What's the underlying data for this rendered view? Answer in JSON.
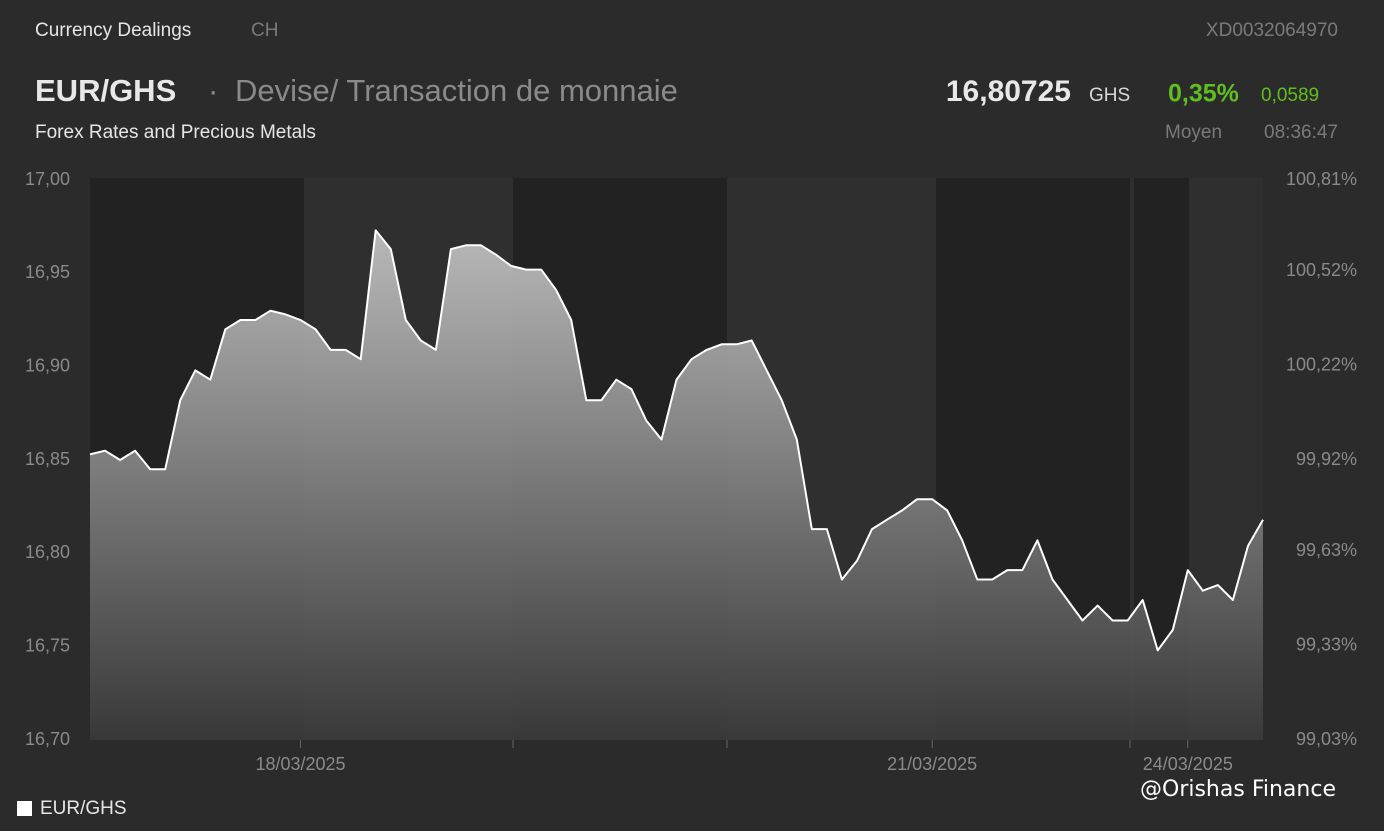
{
  "header": {
    "section": "Currency Dealings",
    "market": "CH",
    "isin": "XD0032064970",
    "pair": "EUR/GHS",
    "separator": "·",
    "description": "Devise/ Transaction de monnaie",
    "price": "16,80725",
    "currency": "GHS",
    "change_pct": "0,35%",
    "change_abs": "0,0589",
    "category": "Forex Rates and Precious Metals",
    "price_type": "Moyen",
    "time": "08:36:47"
  },
  "watermark": "@Orishas Finance",
  "chart_data": {
    "type": "area",
    "categories": [
      null,
      null,
      null,
      null,
      null,
      null,
      null,
      null,
      null,
      null,
      null,
      null,
      null,
      null,
      "18/03/2025",
      null,
      null,
      null,
      null,
      null,
      null,
      null,
      null,
      null,
      null,
      null,
      null,
      null,
      null,
      null,
      null,
      null,
      null,
      null,
      null,
      null,
      null,
      null,
      null,
      null,
      null,
      null,
      null,
      null,
      null,
      null,
      null,
      null,
      null,
      null,
      null,
      null,
      null,
      null,
      null,
      null,
      "21/03/2025",
      null,
      null,
      null,
      null,
      null,
      null,
      null,
      null,
      null,
      null,
      null,
      null,
      null,
      null,
      null,
      null,
      "24/03/2025",
      null,
      null,
      null,
      null,
      null
    ],
    "series": [
      {
        "name": "EUR/GHS",
        "color": "#ffffff",
        "values": [
          16.853,
          16.855,
          16.85,
          16.855,
          16.845,
          16.845,
          16.882,
          16.898,
          16.893,
          16.92,
          16.925,
          16.925,
          16.93,
          16.928,
          16.925,
          16.92,
          16.909,
          16.909,
          16.904,
          16.973,
          16.963,
          16.925,
          16.914,
          16.909,
          16.963,
          16.965,
          16.965,
          16.96,
          16.954,
          16.952,
          16.952,
          16.941,
          16.925,
          16.882,
          16.882,
          16.893,
          16.888,
          16.871,
          16.861,
          16.893,
          16.904,
          16.909,
          16.912,
          16.912,
          16.914,
          16.898,
          16.882,
          16.861,
          16.813,
          16.813,
          16.786,
          16.796,
          16.813,
          16.818,
          16.823,
          16.829,
          16.829,
          16.823,
          16.807,
          16.786,
          16.786,
          16.791,
          16.791,
          16.807,
          16.786,
          16.775,
          16.764,
          16.772,
          16.764,
          16.764,
          16.775,
          16.748,
          16.759,
          16.791,
          16.78,
          16.783,
          16.775,
          16.804,
          16.818
        ]
      }
    ],
    "ylim": [
      16.7,
      17.0
    ],
    "yticks": [
      {
        "value": 16.7,
        "label": "16,70"
      },
      {
        "value": 16.75,
        "label": "16,75"
      },
      {
        "value": 16.8,
        "label": "16,80"
      },
      {
        "value": 16.85,
        "label": "16,85"
      },
      {
        "value": 16.9,
        "label": "16,90"
      },
      {
        "value": 16.95,
        "label": "16,95"
      },
      {
        "value": 17.0,
        "label": "17,00"
      }
    ],
    "y2lim": [
      99.03,
      100.81
    ],
    "y2ticks": [
      {
        "value": 99.03,
        "label": "99,03%"
      },
      {
        "value": 99.33,
        "label": "99,33%"
      },
      {
        "value": 99.63,
        "label": "99,63%"
      },
      {
        "value": 99.92,
        "label": "99,92%"
      },
      {
        "value": 100.22,
        "label": "100,22%"
      },
      {
        "value": 100.52,
        "label": "100,52%"
      },
      {
        "value": 100.81,
        "label": "100,81%"
      }
    ],
    "grid": false
  }
}
